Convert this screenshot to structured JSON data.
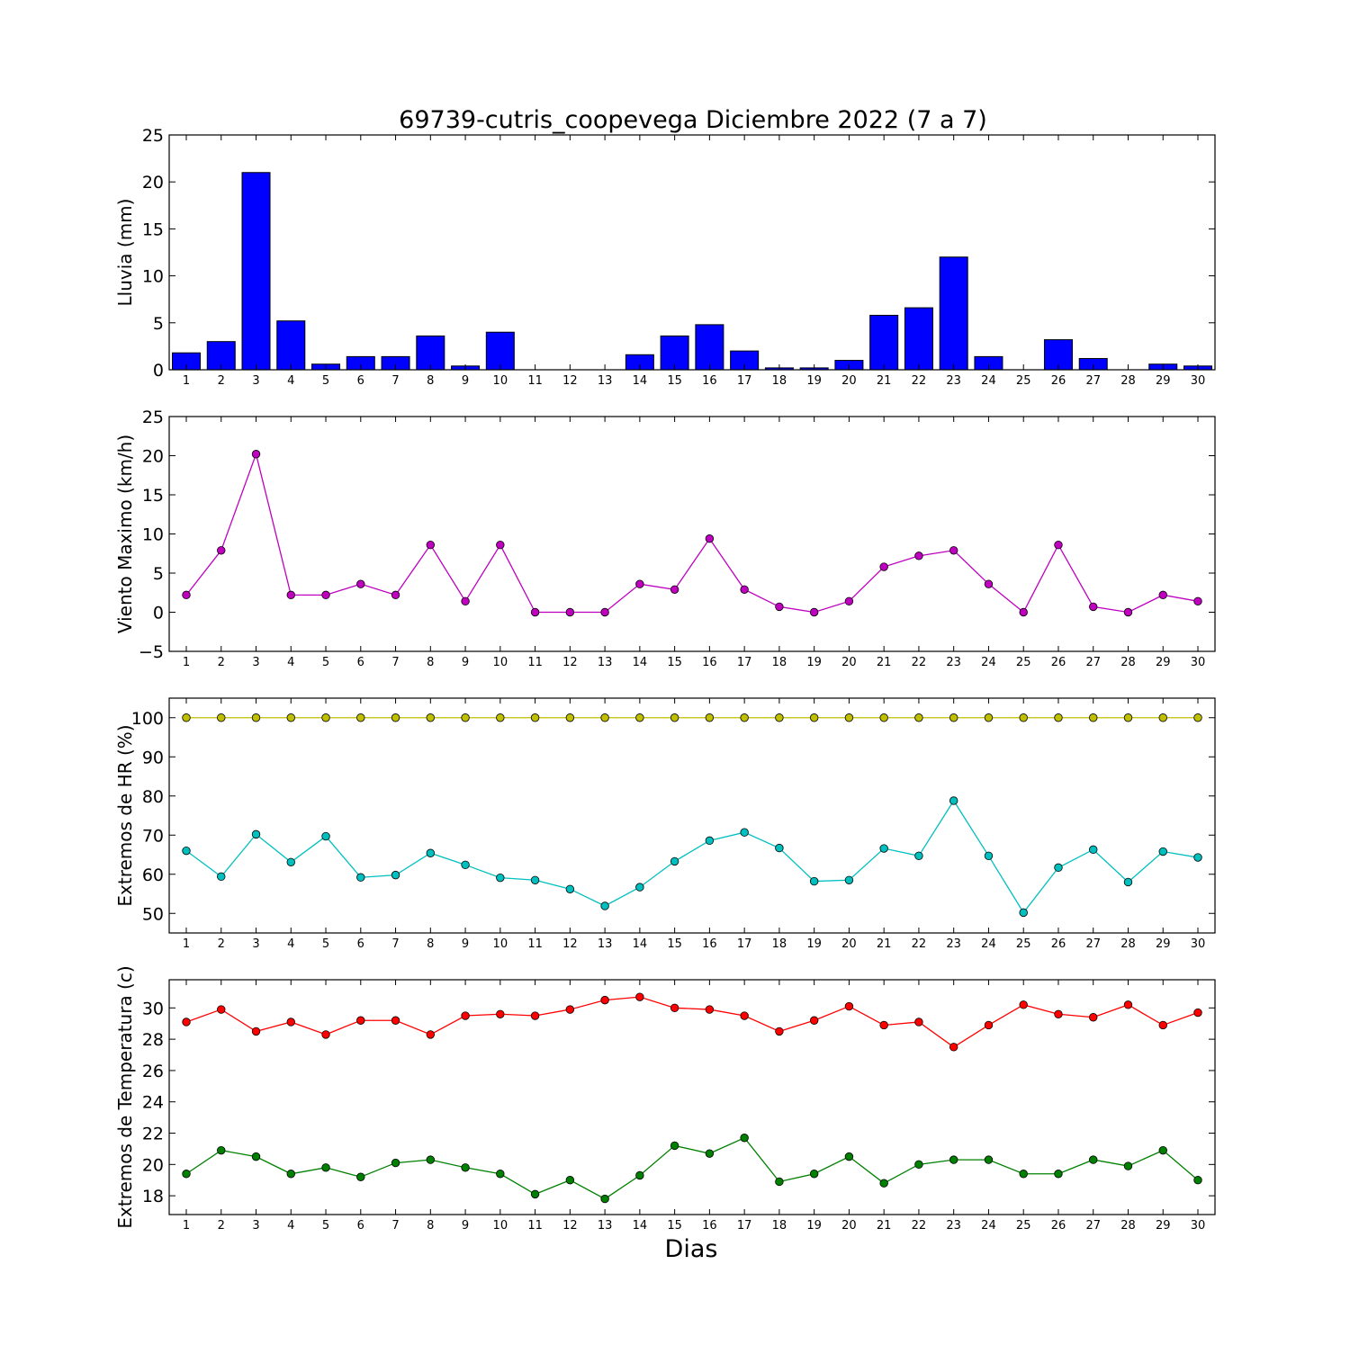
{
  "title": "69739-cutris_coopevega Diciembre 2022  (7 a 7)",
  "xlabel": "Dias",
  "chart_data": [
    {
      "type": "bar",
      "ylabel": "Lluvia (mm)",
      "ylim": [
        0,
        25
      ],
      "yticks": [
        0,
        5,
        10,
        15,
        20,
        25
      ],
      "ytick_labels": [
        "0",
        "5",
        "10",
        "15",
        "20",
        "25"
      ],
      "categories": [
        "1",
        "2",
        "3",
        "4",
        "5",
        "6",
        "7",
        "8",
        "9",
        "10",
        "11",
        "12",
        "13",
        "14",
        "15",
        "16",
        "17",
        "18",
        "19",
        "20",
        "21",
        "22",
        "23",
        "24",
        "25",
        "26",
        "27",
        "28",
        "29",
        "30"
      ],
      "series": [
        {
          "color": "#0000ff",
          "values": [
            1.8,
            3.0,
            21.0,
            5.2,
            0.6,
            1.4,
            1.4,
            3.6,
            0.4,
            4.0,
            0.0,
            0.0,
            0.0,
            1.6,
            3.6,
            4.8,
            2.0,
            0.2,
            0.2,
            1.0,
            5.8,
            6.6,
            12.0,
            1.4,
            0.0,
            3.2,
            1.2,
            0.0,
            0.6,
            0.4
          ]
        }
      ]
    },
    {
      "type": "line",
      "ylabel": "Viento Maximo (km/h)",
      "ylim": [
        -5,
        25
      ],
      "yticks": [
        -5,
        0,
        5,
        10,
        15,
        20,
        25
      ],
      "ytick_labels": [
        "−5",
        "0",
        "5",
        "10",
        "15",
        "20",
        "25"
      ],
      "categories": [
        "1",
        "2",
        "3",
        "4",
        "5",
        "6",
        "7",
        "8",
        "9",
        "10",
        "11",
        "12",
        "13",
        "14",
        "15",
        "16",
        "17",
        "18",
        "19",
        "20",
        "21",
        "22",
        "23",
        "24",
        "25",
        "26",
        "27",
        "28",
        "29",
        "30"
      ],
      "series": [
        {
          "color": "#bf00bf",
          "values": [
            2.2,
            7.9,
            20.2,
            2.2,
            2.2,
            3.6,
            2.2,
            8.6,
            1.4,
            8.6,
            0.0,
            0.0,
            0.0,
            3.6,
            2.9,
            9.4,
            2.9,
            0.7,
            0.0,
            1.4,
            5.8,
            7.2,
            7.9,
            3.6,
            0.0,
            8.6,
            0.7,
            0.0,
            2.2,
            1.4
          ]
        }
      ]
    },
    {
      "type": "line",
      "ylabel": "Extremos de HR (%)",
      "ylim": [
        45,
        105
      ],
      "yticks": [
        50,
        60,
        70,
        80,
        90,
        100
      ],
      "ytick_labels": [
        "50",
        "60",
        "70",
        "80",
        "90",
        "100"
      ],
      "categories": [
        "1",
        "2",
        "3",
        "4",
        "5",
        "6",
        "7",
        "8",
        "9",
        "10",
        "11",
        "12",
        "13",
        "14",
        "15",
        "16",
        "17",
        "18",
        "19",
        "20",
        "21",
        "22",
        "23",
        "24",
        "25",
        "26",
        "27",
        "28",
        "29",
        "30"
      ],
      "series": [
        {
          "color": "#bfbf00",
          "values": [
            100,
            100,
            100,
            100,
            100,
            100,
            100,
            100,
            100,
            100,
            100,
            100,
            100,
            100,
            100,
            100,
            100,
            100,
            100,
            100,
            100,
            100,
            100,
            100,
            100,
            100,
            100,
            100,
            100,
            100
          ]
        },
        {
          "color": "#00bfbf",
          "values": [
            66,
            59.4,
            70.2,
            63.1,
            69.7,
            59.2,
            59.8,
            65.4,
            62.4,
            59.1,
            58.5,
            56.2,
            51.9,
            56.7,
            63.3,
            68.6,
            70.7,
            66.7,
            58.2,
            58.5,
            66.6,
            64.7,
            78.8,
            64.7,
            50.2,
            61.7,
            66.3,
            58,
            65.8,
            64.3
          ]
        }
      ]
    },
    {
      "type": "line",
      "ylabel": "Extremos de Temperatura (c)",
      "ylim": [
        16.8,
        31.8
      ],
      "yticks": [
        18,
        20,
        22,
        24,
        26,
        28,
        30
      ],
      "ytick_labels": [
        "18",
        "20",
        "22",
        "24",
        "26",
        "28",
        "30"
      ],
      "categories": [
        "1",
        "2",
        "3",
        "4",
        "5",
        "6",
        "7",
        "8",
        "9",
        "10",
        "11",
        "12",
        "13",
        "14",
        "15",
        "16",
        "17",
        "18",
        "19",
        "20",
        "21",
        "22",
        "23",
        "24",
        "25",
        "26",
        "27",
        "28",
        "29",
        "30"
      ],
      "series": [
        {
          "color": "#ff0000",
          "values": [
            29.1,
            29.9,
            28.5,
            29.1,
            28.3,
            29.2,
            29.2,
            28.3,
            29.5,
            29.6,
            29.5,
            29.9,
            30.5,
            30.7,
            30.0,
            29.9,
            29.5,
            28.5,
            29.2,
            30.1,
            28.9,
            29.1,
            27.5,
            28.9,
            30.2,
            29.6,
            29.4,
            30.2,
            28.9,
            29.7
          ]
        },
        {
          "color": "#008000",
          "values": [
            19.4,
            20.9,
            20.5,
            19.4,
            19.8,
            19.2,
            20.1,
            20.3,
            19.8,
            19.4,
            18.1,
            19.0,
            17.8,
            19.3,
            21.2,
            20.7,
            21.7,
            18.9,
            19.4,
            20.5,
            18.8,
            20.0,
            20.3,
            20.3,
            19.4,
            19.4,
            20.3,
            19.9,
            20.9,
            19.0
          ]
        }
      ]
    }
  ]
}
